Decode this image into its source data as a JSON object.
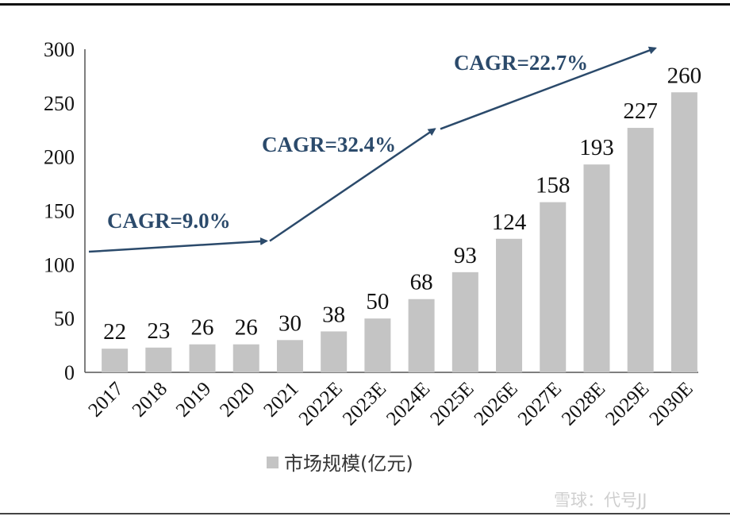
{
  "chart_data": {
    "type": "bar",
    "categories": [
      "2017",
      "2018",
      "2019",
      "2020",
      "2021",
      "2022E",
      "2023E",
      "2024E",
      "2025E",
      "2026E",
      "2027E",
      "2028E",
      "2029E",
      "2030E"
    ],
    "series": [
      {
        "name": "市场规模(亿元)",
        "values": [
          22,
          23,
          26,
          26,
          30,
          38,
          50,
          68,
          93,
          124,
          158,
          193,
          227,
          260
        ]
      }
    ],
    "data_labels": [
      "22",
      "23",
      "26",
      "26",
      "30",
      "38",
      "50",
      "68",
      "93",
      "124",
      "158",
      "193",
      "227",
      "260"
    ],
    "ylim": [
      0,
      300
    ],
    "yticks": [
      0,
      50,
      100,
      150,
      200,
      250,
      300
    ],
    "grid": false,
    "legend": "bottom-center",
    "bar_color": "#c4c4c4",
    "annotations": [
      {
        "text": "CAGR=9.0%",
        "from_category": "2017",
        "to_category": "2021",
        "from_y": 112,
        "to_y": 122
      },
      {
        "text": "CAGR=32.4%",
        "from_category": "2021",
        "to_category": "2025E",
        "from_y": 122,
        "to_y": 226
      },
      {
        "text": "CAGR=22.7%",
        "from_category": "2025E",
        "to_category": "2030E",
        "from_y": 226,
        "to_y": 301
      }
    ],
    "arrow_color": "#2b4a6b"
  },
  "watermark": "雪球：代号JJ"
}
